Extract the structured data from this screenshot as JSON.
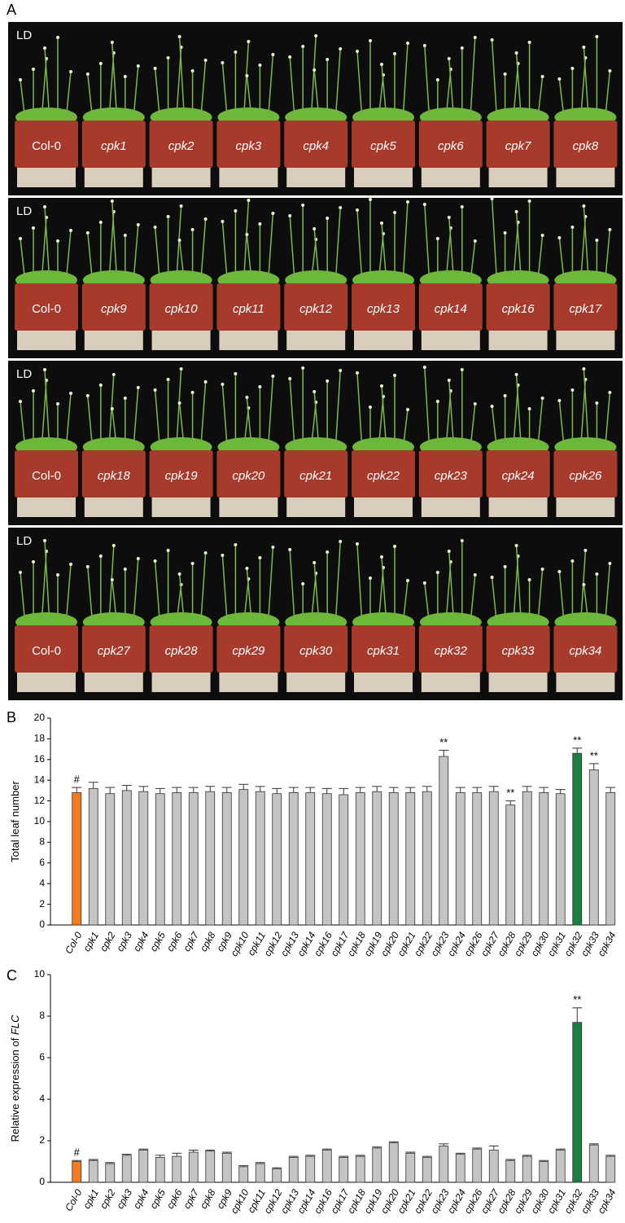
{
  "panel_labels": [
    "A",
    "B",
    "C"
  ],
  "photo_rows": [
    {
      "label": "LD",
      "pots": [
        "Col-0",
        "cpk1",
        "cpk2",
        "cpk3",
        "cpk4",
        "cpk5",
        "cpk6",
        "cpk7",
        "cpk8"
      ]
    },
    {
      "label": "LD",
      "pots": [
        "Col-0",
        "cpk9",
        "cpk10",
        "cpk11",
        "cpk12",
        "cpk13",
        "cpk14",
        "cpk16",
        "cpk17"
      ]
    },
    {
      "label": "LD",
      "pots": [
        "Col-0",
        "cpk18",
        "cpk19",
        "cpk20",
        "cpk21",
        "cpk22",
        "cpk23",
        "cpk24",
        "cpk26"
      ]
    },
    {
      "label": "LD",
      "pots": [
        "Col-0",
        "cpk27",
        "cpk28",
        "cpk29",
        "cpk30",
        "cpk31",
        "cpk32",
        "cpk33",
        "cpk34"
      ]
    }
  ],
  "chart_data": [
    {
      "type": "bar",
      "ylabel": [
        "Total leaf number"
      ],
      "categories": [
        "Col-0",
        "cpk1",
        "cpk2",
        "cpk3",
        "cpk4",
        "cpk5",
        "cpk6",
        "cpk7",
        "cpk8",
        "cpk9",
        "cpk10",
        "cpk11",
        "cpk12",
        "cpk13",
        "cpk14",
        "cpk16",
        "cpk17",
        "cpk18",
        "cpk19",
        "cpk20",
        "cpk21",
        "cpk22",
        "cpk23",
        "cpk24",
        "cpk26",
        "cpk27",
        "cpk28",
        "cpk29",
        "cpk30",
        "cpk31",
        "cpk32",
        "cpk33",
        "cpk34"
      ],
      "values": [
        12.8,
        13.2,
        12.7,
        13.0,
        12.9,
        12.7,
        12.8,
        12.8,
        12.9,
        12.8,
        13.1,
        12.9,
        12.7,
        12.8,
        12.8,
        12.7,
        12.6,
        12.8,
        12.9,
        12.8,
        12.8,
        12.9,
        16.3,
        12.8,
        12.8,
        12.9,
        11.6,
        12.9,
        12.8,
        12.7,
        16.6,
        15.0,
        12.8
      ],
      "errors": [
        0.5,
        0.6,
        0.6,
        0.5,
        0.5,
        0.5,
        0.5,
        0.5,
        0.5,
        0.5,
        0.5,
        0.5,
        0.5,
        0.5,
        0.5,
        0.5,
        0.6,
        0.5,
        0.5,
        0.5,
        0.5,
        0.5,
        0.6,
        0.5,
        0.5,
        0.5,
        0.4,
        0.5,
        0.5,
        0.4,
        0.5,
        0.6,
        0.5
      ],
      "value_annotations": [
        "#",
        null,
        null,
        null,
        null,
        null,
        null,
        null,
        null,
        null,
        null,
        null,
        null,
        null,
        null,
        null,
        null,
        null,
        null,
        null,
        null,
        null,
        "**",
        null,
        null,
        null,
        "**",
        null,
        null,
        null,
        "**",
        "**",
        null
      ],
      "colors": [
        "#f47b20",
        "#c4c4c4",
        "#c4c4c4",
        "#c4c4c4",
        "#c4c4c4",
        "#c4c4c4",
        "#c4c4c4",
        "#c4c4c4",
        "#c4c4c4",
        "#c4c4c4",
        "#c4c4c4",
        "#c4c4c4",
        "#c4c4c4",
        "#c4c4c4",
        "#c4c4c4",
        "#c4c4c4",
        "#c4c4c4",
        "#c4c4c4",
        "#c4c4c4",
        "#c4c4c4",
        "#c4c4c4",
        "#c4c4c4",
        "#c4c4c4",
        "#c4c4c4",
        "#c4c4c4",
        "#c4c4c4",
        "#c4c4c4",
        "#c4c4c4",
        "#c4c4c4",
        "#c4c4c4",
        "#1a7f3f",
        "#c4c4c4",
        "#c4c4c4"
      ],
      "ylim": [
        0,
        20
      ],
      "yticks": [
        0,
        2,
        4,
        6,
        8,
        10,
        12,
        14,
        16,
        18,
        20
      ]
    },
    {
      "type": "bar",
      "ylabel": [
        "Relative expression of ",
        "FLC"
      ],
      "categories": [
        "Col-0",
        "cpk1",
        "cpk2",
        "cpk3",
        "cpk4",
        "cpk5",
        "cpk6",
        "cpk7",
        "cpk8",
        "cpk9",
        "cpk10",
        "cpk11",
        "cpk12",
        "cpk13",
        "cpk14",
        "cpk16",
        "cpk17",
        "cpk18",
        "cpk19",
        "cpk20",
        "cpk21",
        "cpk22",
        "cpk23",
        "cpk24",
        "cpk26",
        "cpk27",
        "cpk28",
        "cpk29",
        "cpk30",
        "cpk31",
        "cpk32",
        "cpk33",
        "cpk34"
      ],
      "values": [
        1.0,
        1.05,
        0.9,
        1.3,
        1.55,
        1.2,
        1.25,
        1.45,
        1.5,
        1.4,
        0.75,
        0.9,
        0.65,
        1.2,
        1.25,
        1.55,
        1.2,
        1.25,
        1.65,
        1.9,
        1.4,
        1.2,
        1.75,
        1.35,
        1.6,
        1.55,
        1.05,
        1.25,
        1.0,
        1.55,
        7.7,
        1.8,
        1.25
      ],
      "errors": [
        0.05,
        0.05,
        0.05,
        0.05,
        0.05,
        0.1,
        0.15,
        0.1,
        0.05,
        0.05,
        0.05,
        0.05,
        0.05,
        0.05,
        0.05,
        0.05,
        0.05,
        0.05,
        0.05,
        0.05,
        0.05,
        0.05,
        0.1,
        0.05,
        0.05,
        0.2,
        0.05,
        0.05,
        0.05,
        0.05,
        0.7,
        0.05,
        0.05
      ],
      "value_annotations": [
        "#",
        null,
        null,
        null,
        null,
        null,
        null,
        null,
        null,
        null,
        null,
        null,
        null,
        null,
        null,
        null,
        null,
        null,
        null,
        null,
        null,
        null,
        null,
        null,
        null,
        null,
        null,
        null,
        null,
        null,
        "**",
        null,
        null
      ],
      "colors": [
        "#f47b20",
        "#c4c4c4",
        "#c4c4c4",
        "#c4c4c4",
        "#c4c4c4",
        "#c4c4c4",
        "#c4c4c4",
        "#c4c4c4",
        "#c4c4c4",
        "#c4c4c4",
        "#c4c4c4",
        "#c4c4c4",
        "#c4c4c4",
        "#c4c4c4",
        "#c4c4c4",
        "#c4c4c4",
        "#c4c4c4",
        "#c4c4c4",
        "#c4c4c4",
        "#c4c4c4",
        "#c4c4c4",
        "#c4c4c4",
        "#c4c4c4",
        "#c4c4c4",
        "#c4c4c4",
        "#c4c4c4",
        "#c4c4c4",
        "#c4c4c4",
        "#c4c4c4",
        "#c4c4c4",
        "#1a7f3f",
        "#c4c4c4",
        "#c4c4c4"
      ],
      "ylim": [
        0,
        10
      ],
      "yticks": [
        0,
        2,
        4,
        6,
        8,
        10
      ]
    }
  ]
}
